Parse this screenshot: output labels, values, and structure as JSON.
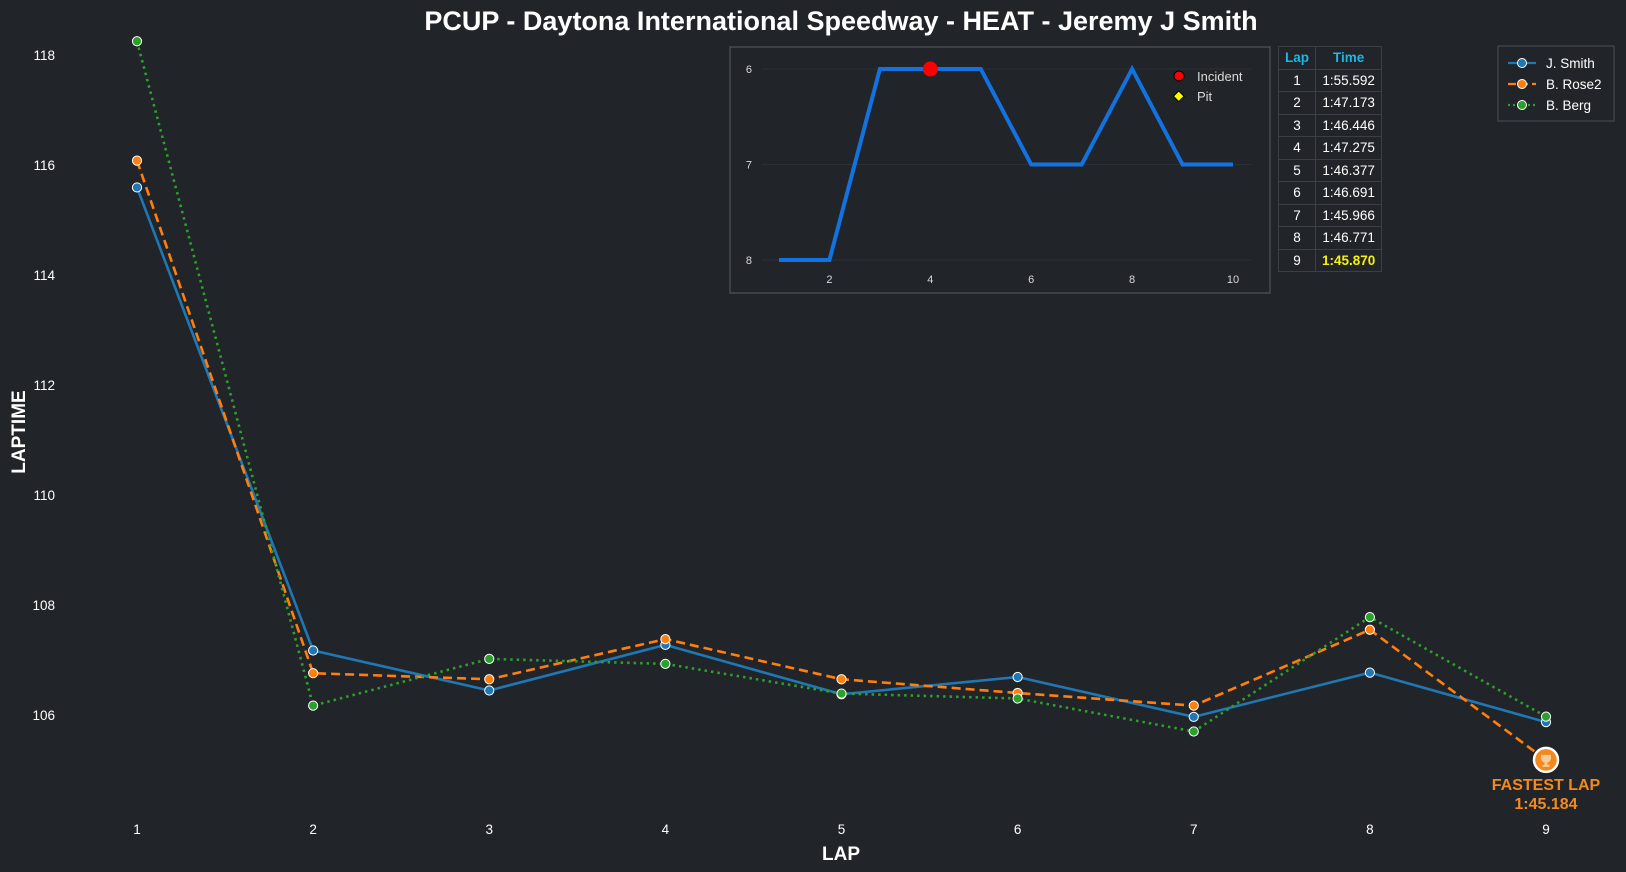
{
  "chart_data": [
    {
      "type": "line",
      "title": "PCUP - Daytona International Speedway - HEAT - Jeremy J Smith",
      "xlabel": "LAP",
      "ylabel": "LAPTIME",
      "x": [
        1,
        2,
        3,
        4,
        5,
        6,
        7,
        8,
        9
      ],
      "ylim": [
        104.2,
        118.3
      ],
      "yticks": [
        106,
        108,
        110,
        112,
        114,
        116,
        118
      ],
      "grid": false,
      "legend": "top-right",
      "series": [
        {
          "name": "J. Smith",
          "color": "#1f77b4",
          "style": "solid",
          "values": [
            115.592,
            107.173,
            106.446,
            107.275,
            106.377,
            106.691,
            105.966,
            106.771,
            105.87
          ]
        },
        {
          "name": "B. Rose2",
          "color": "#ff7f0e",
          "style": "dashed",
          "values": [
            116.08,
            106.76,
            106.65,
            107.38,
            106.65,
            106.4,
            106.17,
            107.55,
            105.184
          ]
        },
        {
          "name": "B. Berg",
          "color": "#2ca02c",
          "style": "dotted",
          "values": [
            118.25,
            106.17,
            107.02,
            106.93,
            106.39,
            106.3,
            105.7,
            107.78,
            105.97
          ]
        }
      ],
      "annotation": {
        "label": "FASTEST LAP",
        "value": "1:45.184",
        "lap": 9,
        "laptime": 105.184,
        "color": "#f28a20"
      }
    },
    {
      "type": "line",
      "title": "",
      "x": [
        1,
        2,
        3,
        4,
        5,
        6,
        7,
        8,
        9,
        10
      ],
      "values": [
        8,
        8,
        6,
        6,
        6,
        7,
        7,
        6,
        7,
        7
      ],
      "xticks": [
        2,
        4,
        6,
        8,
        10
      ],
      "yticks": [
        6,
        7,
        8
      ],
      "ylim": [
        8.2,
        5.8
      ],
      "y_inverted": true,
      "color": "#1272e0",
      "incidents": [
        {
          "x": 4,
          "y": 6
        }
      ],
      "pits": [],
      "legend": [
        {
          "label": "Incident",
          "color": "#ff0000"
        },
        {
          "label": "Pit",
          "color": "#ffff00"
        }
      ]
    },
    {
      "type": "table",
      "headers": [
        "Lap",
        "Time"
      ],
      "rows": [
        [
          "1",
          "1:55.592"
        ],
        [
          "2",
          "1:47.173"
        ],
        [
          "3",
          "1:46.446"
        ],
        [
          "4",
          "1:47.275"
        ],
        [
          "5",
          "1:46.377"
        ],
        [
          "6",
          "1:46.691"
        ],
        [
          "7",
          "1:45.966"
        ],
        [
          "8",
          "1:46.771"
        ],
        [
          "9",
          "1:45.870"
        ]
      ],
      "fastest_row": 8,
      "header_color": "#1ab8e8",
      "fastest_color": "#f5f00f"
    }
  ]
}
